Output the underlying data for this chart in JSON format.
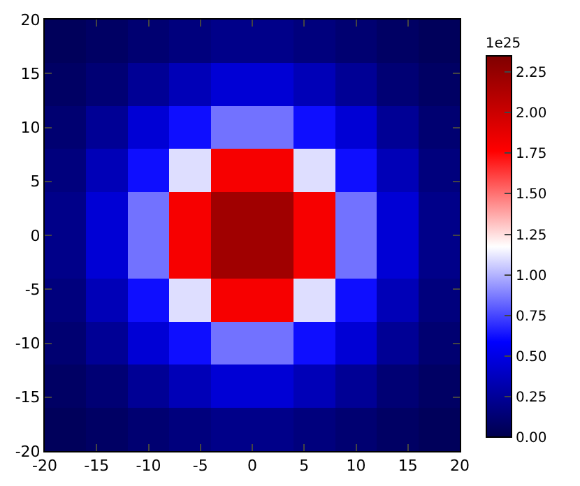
{
  "chart_data": {
    "type": "heatmap",
    "x": [
      -18,
      -14,
      -10,
      -6,
      -2,
      2,
      6,
      10,
      14,
      18
    ],
    "y": [
      18,
      14,
      10,
      6,
      2,
      -2,
      -6,
      -10,
      -14,
      -18
    ],
    "cells": [
      [
        0.05,
        0.08,
        0.12,
        0.16,
        0.2,
        0.2,
        0.16,
        0.12,
        0.08,
        0.05
      ],
      [
        0.08,
        0.13,
        0.24,
        0.35,
        0.45,
        0.45,
        0.35,
        0.24,
        0.13,
        0.08
      ],
      [
        0.12,
        0.24,
        0.45,
        0.62,
        0.85,
        0.85,
        0.62,
        0.45,
        0.24,
        0.12
      ],
      [
        0.16,
        0.35,
        0.62,
        1.1,
        1.8,
        1.8,
        1.1,
        0.62,
        0.35,
        0.16
      ],
      [
        0.2,
        0.45,
        0.85,
        1.8,
        2.2,
        2.2,
        1.8,
        0.85,
        0.45,
        0.2
      ],
      [
        0.2,
        0.45,
        0.85,
        1.8,
        2.2,
        2.2,
        1.8,
        0.85,
        0.45,
        0.2
      ],
      [
        0.16,
        0.35,
        0.62,
        1.1,
        1.8,
        1.8,
        1.1,
        0.62,
        0.35,
        0.16
      ],
      [
        0.12,
        0.24,
        0.45,
        0.62,
        0.85,
        0.85,
        0.62,
        0.45,
        0.24,
        0.12
      ],
      [
        0.08,
        0.13,
        0.24,
        0.35,
        0.45,
        0.45,
        0.35,
        0.24,
        0.13,
        0.08
      ],
      [
        0.05,
        0.08,
        0.12,
        0.16,
        0.2,
        0.2,
        0.16,
        0.12,
        0.08,
        0.05
      ]
    ],
    "xlim": [
      -20,
      20
    ],
    "ylim": [
      -20,
      20
    ],
    "xticks": [
      -20,
      -15,
      -10,
      -5,
      0,
      5,
      10,
      15,
      20
    ],
    "yticks": [
      -20,
      -15,
      -10,
      -5,
      0,
      5,
      10,
      15,
      20
    ],
    "clim": [
      0,
      2.35
    ],
    "cticks": [
      {
        "value": 0,
        "label": "0.00"
      },
      {
        "value": 0.25,
        "label": "0.25"
      },
      {
        "value": 0.5,
        "label": "0.50"
      },
      {
        "value": 0.75,
        "label": "0.75"
      },
      {
        "value": 1,
        "label": "1.00"
      },
      {
        "value": 1.25,
        "label": "1.25"
      },
      {
        "value": 1.5,
        "label": "1.50"
      },
      {
        "value": 1.75,
        "label": "1.75"
      },
      {
        "value": 2,
        "label": "2.00"
      },
      {
        "value": 2.25,
        "label": "2.25"
      }
    ],
    "clabel": "1e25"
  }
}
